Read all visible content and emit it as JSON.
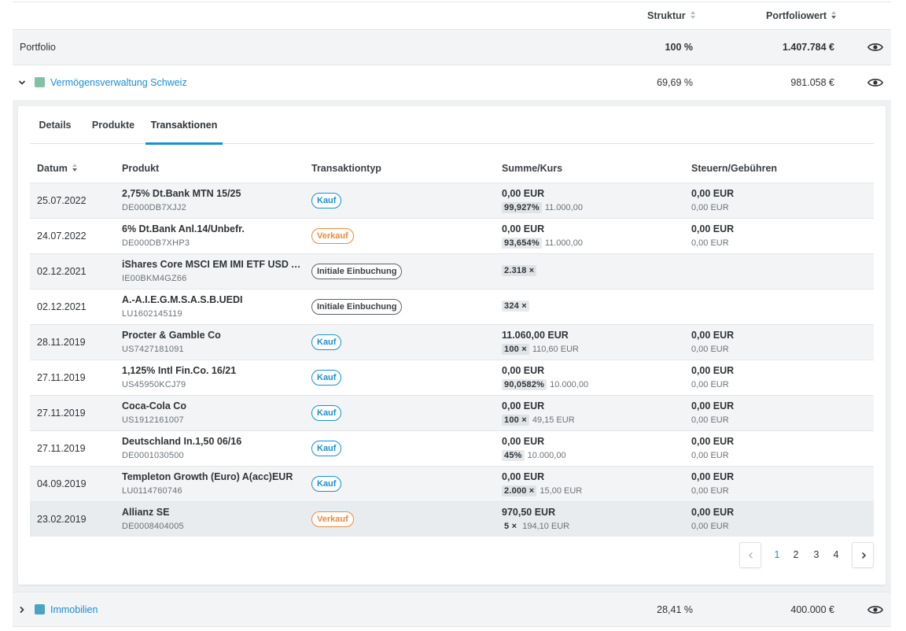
{
  "header": {
    "col_struktur": "Struktur",
    "col_portfoliowert": "Portfoliowert"
  },
  "portfolio": {
    "label": "Portfolio",
    "struktur": "100 %",
    "wert": "1.407.784 €"
  },
  "groups": [
    {
      "name": "Vermögensverwaltung Schweiz",
      "struktur": "69,69 %",
      "wert": "981.058 €",
      "color": "#7fc3a6",
      "expanded": true
    },
    {
      "name": "Immobilien",
      "struktur": "28,41 %",
      "wert": "400.000 €",
      "color": "#4aa3c4",
      "expanded": false
    }
  ],
  "tabs": [
    {
      "label": "Details"
    },
    {
      "label": "Produkte"
    },
    {
      "label": "Transaktionen",
      "active": true
    }
  ],
  "table": {
    "headers": {
      "datum": "Datum",
      "produkt": "Produkt",
      "typ": "Transaktiontyp",
      "summe": "Summe/Kurs",
      "steuern": "Steuern/Gebühren"
    },
    "rows": [
      {
        "date": "25.07.2022",
        "name": "2,75% Dt.Bank MTN 15/25",
        "isin": "DE000DB7XJJ2",
        "type": "Kauf",
        "sum": "0,00 EUR",
        "chip": "99,927%",
        "kurs": "11.000,00",
        "tax": "0,00 EUR",
        "fee": "0,00 EUR"
      },
      {
        "date": "24.07.2022",
        "name": "6% Dt.Bank Anl.14/Unbefr.",
        "isin": "DE000DB7XHP3",
        "type": "Verkauf",
        "sum": "0,00 EUR",
        "chip": "93,654%",
        "kurs": "11.000,00",
        "tax": "0,00 EUR",
        "fee": "0,00 EUR"
      },
      {
        "date": "02.12.2021",
        "name": "iShares Core MSCI EM IMI ETF USD Acc",
        "isin": "IE00BKM4GZ66",
        "type": "Initiale Einbuchung",
        "sum": "",
        "chip": "2.318 ×",
        "kurs": "",
        "tax": "",
        "fee": ""
      },
      {
        "date": "02.12.2021",
        "name": "A.-A.I.E.G.M.S.A.S.B.UEDI",
        "isin": "LU1602145119",
        "type": "Initiale Einbuchung",
        "sum": "",
        "chip": "324 ×",
        "kurs": "",
        "tax": "",
        "fee": ""
      },
      {
        "date": "28.11.2019",
        "name": "Procter & Gamble Co",
        "isin": "US7427181091",
        "type": "Kauf",
        "sum": "11.060,00 EUR",
        "chip": "100 ×",
        "kurs": "110,60 EUR",
        "tax": "0,00 EUR",
        "fee": "0,00 EUR"
      },
      {
        "date": "27.11.2019",
        "name": "1,125% Intl Fin.Co. 16/21",
        "isin": "US45950KCJ79",
        "type": "Kauf",
        "sum": "0,00 EUR",
        "chip": "90,0582%",
        "kurs": "10.000,00",
        "tax": "0,00 EUR",
        "fee": "0,00 EUR"
      },
      {
        "date": "27.11.2019",
        "name": "Coca-Cola Co",
        "isin": "US1912161007",
        "type": "Kauf",
        "sum": "0,00 EUR",
        "chip": "100 ×",
        "kurs": "49,15 EUR",
        "tax": "0,00 EUR",
        "fee": "0,00 EUR"
      },
      {
        "date": "27.11.2019",
        "name": "Deutschland In.1,50 06/16",
        "isin": "DE0001030500",
        "type": "Kauf",
        "sum": "0,00 EUR",
        "chip": "45%",
        "kurs": "10.000,00",
        "tax": "0,00 EUR",
        "fee": "0,00 EUR"
      },
      {
        "date": "04.09.2019",
        "name": "Templeton Growth (Euro) A(acc)EUR",
        "isin": "LU0114760746",
        "type": "Kauf",
        "sum": "0,00 EUR",
        "chip": "2.000 ×",
        "kurs": "15,00 EUR",
        "tax": "0,00 EUR",
        "fee": "0,00 EUR"
      },
      {
        "date": "23.02.2019",
        "name": "Allianz SE",
        "isin": "DE0008404005",
        "type": "Verkauf",
        "sum": "970,50 EUR",
        "chip": "5 ×",
        "kurs": "194,10 EUR",
        "tax": "0,00 EUR",
        "fee": "0,00 EUR"
      }
    ]
  },
  "pagination": {
    "pages": [
      "1",
      "2",
      "3",
      "4"
    ],
    "current": "1"
  },
  "icons": {
    "eye": "eye-icon",
    "expand": "chevron-down-icon",
    "collapse": "chevron-right-icon",
    "sort": "sort-icon"
  }
}
